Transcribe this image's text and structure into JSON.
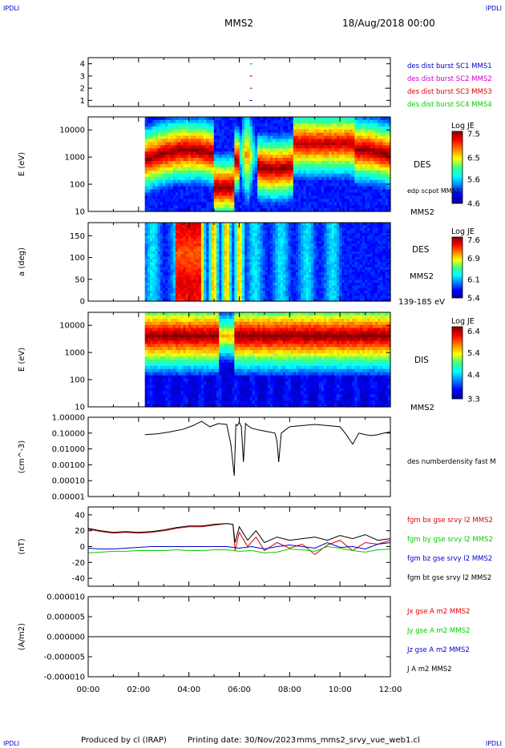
{
  "header": {
    "corner_tl": "IPDLI",
    "corner_tr": "IPDLI",
    "corner_bl": "IPDLI",
    "corner_br": "IPDLI",
    "spacecraft": "MMS2",
    "date": "18/Aug/2018 00:00"
  },
  "footer": {
    "produced": "Produced by cl (IRAP)",
    "printing": "Printing date: 30/Nov/2023",
    "file": "mms_mms2_srvy_vue_web1.cl"
  },
  "colors": {
    "red": "#dd0000",
    "green": "#00cc00",
    "blue": "#0000cc",
    "magenta": "#cc00cc",
    "black": "#000000"
  },
  "chart_data": [
    {
      "type": "scatter",
      "name": "burst-availability",
      "yticks": [
        "4",
        "3",
        "2",
        "1"
      ],
      "ylim": [
        0.5,
        4.5
      ],
      "series": [
        {
          "name": "des dist burst SC1 MMS1",
          "color": "#0000cc",
          "y": 1,
          "x": [
            "06:28"
          ]
        },
        {
          "name": "des dist burst SC2 MMS2",
          "color": "#cc00cc",
          "y": 2,
          "x": [
            "06:28",
            "11:50"
          ]
        },
        {
          "name": "des dist burst SC3 MMS3",
          "color": "#dd0000",
          "y": 3,
          "x": [
            "06:28"
          ]
        },
        {
          "name": "des dist burst SC4 MMS4",
          "color": "#00cc00",
          "y": 4,
          "x": [
            "06:28"
          ]
        }
      ]
    },
    {
      "type": "heatmap",
      "name": "des-energy-spectrogram",
      "ylabel": "E (eV)",
      "ytick_labels": [
        "10000",
        "1000",
        "100",
        "10"
      ],
      "ylim": [
        10,
        30000
      ],
      "yscale": "log",
      "data_start": "02:15",
      "side_labels": [
        "DES",
        "edp scpot MMS2",
        "MMS2"
      ],
      "colorbar": {
        "label": "Log JE",
        "ticks": [
          "7.5",
          "6.5",
          "5.6",
          "4.6"
        ],
        "range": [
          4.6,
          7.6
        ]
      }
    },
    {
      "type": "heatmap",
      "name": "des-pitch-angle",
      "ylabel": "a (deg)",
      "ytick_labels": [
        "150",
        "100",
        "50",
        "0"
      ],
      "ylim": [
        0,
        180
      ],
      "data_start": "02:15",
      "side_labels": [
        "DES",
        "MMS2",
        "139-185 eV"
      ],
      "colorbar": {
        "label": "Log JE",
        "ticks": [
          "7.6",
          "6.9",
          "6.1",
          "5.4"
        ],
        "range": [
          5.4,
          7.7
        ]
      }
    },
    {
      "type": "heatmap",
      "name": "dis-energy-spectrogram",
      "ylabel": "E (eV)",
      "ytick_labels": [
        "10000",
        "1000",
        "100",
        "10"
      ],
      "ylim": [
        10,
        30000
      ],
      "yscale": "log",
      "data_start": "02:15",
      "side_labels": [
        "DIS",
        "MMS2"
      ],
      "colorbar": {
        "label": "Log JE",
        "ticks": [
          "6.4",
          "5.4",
          "4.4",
          "3.3"
        ],
        "range": [
          3.3,
          6.6
        ]
      }
    },
    {
      "type": "line",
      "name": "number-density",
      "ylabel": "(cm^-3)",
      "yscale": "log",
      "ytick_labels": [
        "1.00000",
        "0.10000",
        "0.01000",
        "0.00100",
        "0.00010",
        "0.00001"
      ],
      "ylim": [
        1e-05,
        1.0
      ],
      "series": [
        {
          "name": "des numberdensity fast M",
          "color": "#000000",
          "x": [
            "02:15",
            "02:45",
            "03:15",
            "03:45",
            "04:10",
            "04:30",
            "04:50",
            "05:10",
            "05:30",
            "05:40",
            "05:48",
            "05:52",
            "05:56",
            "06:00",
            "06:05",
            "06:10",
            "06:15",
            "06:20",
            "06:30",
            "06:50",
            "07:10",
            "07:25",
            "07:30",
            "07:34",
            "07:40",
            "08:00",
            "08:30",
            "09:00",
            "09:30",
            "10:00",
            "10:15",
            "10:30",
            "10:45",
            "11:00",
            "11:15",
            "11:30",
            "11:45",
            "12:00"
          ],
          "y": [
            0.08,
            0.09,
            0.12,
            0.17,
            0.3,
            0.55,
            0.25,
            0.4,
            0.35,
            0.02,
            0.0002,
            0.35,
            0.3,
            0.5,
            0.25,
            0.0015,
            0.4,
            0.3,
            0.2,
            0.15,
            0.12,
            0.1,
            0.03,
            0.0015,
            0.1,
            0.25,
            0.3,
            0.35,
            0.3,
            0.25,
            0.08,
            0.02,
            0.1,
            0.08,
            0.07,
            0.08,
            0.1,
            0.12
          ]
        }
      ]
    },
    {
      "type": "line",
      "name": "magnetic-field",
      "ylabel": "(nT)",
      "ytick_labels": [
        "40",
        "20",
        "0",
        "-20",
        "-40"
      ],
      "ylim": [
        -50,
        50
      ],
      "series": [
        {
          "name": "fgm bx gse srvy l2 MMS2",
          "color": "#dd0000",
          "x": [
            "00:00",
            "00:30",
            "01:00",
            "01:30",
            "02:00",
            "02:30",
            "03:00",
            "03:30",
            "04:00",
            "04:30",
            "05:00",
            "05:30",
            "05:45",
            "05:50",
            "06:00",
            "06:20",
            "06:40",
            "07:00",
            "07:30",
            "08:00",
            "08:30",
            "09:00",
            "09:30",
            "10:00",
            "10:30",
            "11:00",
            "11:30",
            "12:00"
          ],
          "y": [
            22,
            19,
            17,
            18,
            17,
            18,
            20,
            23,
            25,
            25,
            27,
            29,
            28,
            -5,
            18,
            0,
            12,
            -5,
            5,
            -2,
            3,
            -10,
            2,
            8,
            -5,
            5,
            3,
            8
          ]
        },
        {
          "name": "fgm by gse srvy l2 MMS2",
          "color": "#00cc00",
          "x": [
            "00:00",
            "00:30",
            "01:00",
            "01:30",
            "02:00",
            "02:30",
            "03:00",
            "03:30",
            "04:00",
            "04:30",
            "05:00",
            "05:30",
            "06:00",
            "06:30",
            "07:00",
            "07:30",
            "08:00",
            "08:30",
            "09:00",
            "09:30",
            "10:00",
            "10:30",
            "11:00",
            "11:30",
            "12:00"
          ],
          "y": [
            -8,
            -7,
            -6,
            -6,
            -5,
            -5,
            -5,
            -4,
            -5,
            -5,
            -4,
            -4,
            -6,
            -5,
            -8,
            -7,
            -3,
            -4,
            -6,
            0,
            -2,
            -5,
            -7,
            -4,
            -3
          ]
        },
        {
          "name": "fgm bz gse srvy l2 MMS2",
          "color": "#0000cc",
          "x": [
            "00:00",
            "00:30",
            "01:00",
            "01:30",
            "02:00",
            "02:30",
            "03:00",
            "03:30",
            "04:00",
            "04:30",
            "05:00",
            "05:30",
            "06:00",
            "06:30",
            "07:00",
            "07:30",
            "08:00",
            "08:30",
            "09:00",
            "09:30",
            "10:00",
            "10:30",
            "11:00",
            "11:30",
            "12:00"
          ],
          "y": [
            -2,
            -3,
            -3,
            -2,
            -1,
            0,
            0,
            0,
            0,
            0,
            0,
            0,
            -2,
            0,
            -3,
            0,
            2,
            0,
            -2,
            5,
            -1,
            0,
            -3,
            3,
            5
          ]
        },
        {
          "name": "fgm bt gse srvy l2 MMS2",
          "color": "#000000",
          "x": [
            "00:00",
            "00:30",
            "01:00",
            "01:30",
            "02:00",
            "02:30",
            "03:00",
            "03:30",
            "04:00",
            "04:30",
            "05:00",
            "05:30",
            "05:45",
            "05:50",
            "06:00",
            "06:20",
            "06:40",
            "07:00",
            "07:30",
            "08:00",
            "08:30",
            "09:00",
            "09:30",
            "10:00",
            "10:30",
            "11:00",
            "11:30",
            "12:00"
          ],
          "y": [
            23,
            20,
            18,
            19,
            18,
            19,
            21,
            24,
            26,
            26,
            28,
            29,
            28,
            5,
            25,
            8,
            20,
            5,
            12,
            8,
            10,
            12,
            8,
            14,
            10,
            15,
            8,
            10
          ]
        }
      ]
    },
    {
      "type": "line",
      "name": "current-density",
      "ylabel": "(A/m2)",
      "ytick_labels": [
        "0.000010",
        "0.000005",
        "0.000000",
        "-0.000005",
        "-0.000010"
      ],
      "ylim": [
        -1e-05,
        1e-05
      ],
      "series": [
        {
          "name": "Jx gse A m2 MMS2",
          "color": "#dd0000",
          "x": [
            "00:00",
            "12:00"
          ],
          "y": [
            0,
            0
          ]
        },
        {
          "name": "Jy gse A m2 MMS2",
          "color": "#00cc00",
          "x": [
            "00:00",
            "12:00"
          ],
          "y": [
            0,
            0
          ]
        },
        {
          "name": "Jz gse A m2 MMS2",
          "color": "#0000cc",
          "x": [
            "00:00",
            "12:00"
          ],
          "y": [
            0,
            0
          ]
        },
        {
          "name": "J A m2 MMS2",
          "color": "#000000",
          "x": [
            "00:00",
            "12:00"
          ],
          "y": [
            0,
            0
          ]
        }
      ]
    }
  ],
  "x_axis": {
    "ticks": [
      "00:00",
      "02:00",
      "04:00",
      "06:00",
      "08:00",
      "10:00",
      "12:00"
    ],
    "range": [
      "00:00",
      "12:00"
    ]
  }
}
